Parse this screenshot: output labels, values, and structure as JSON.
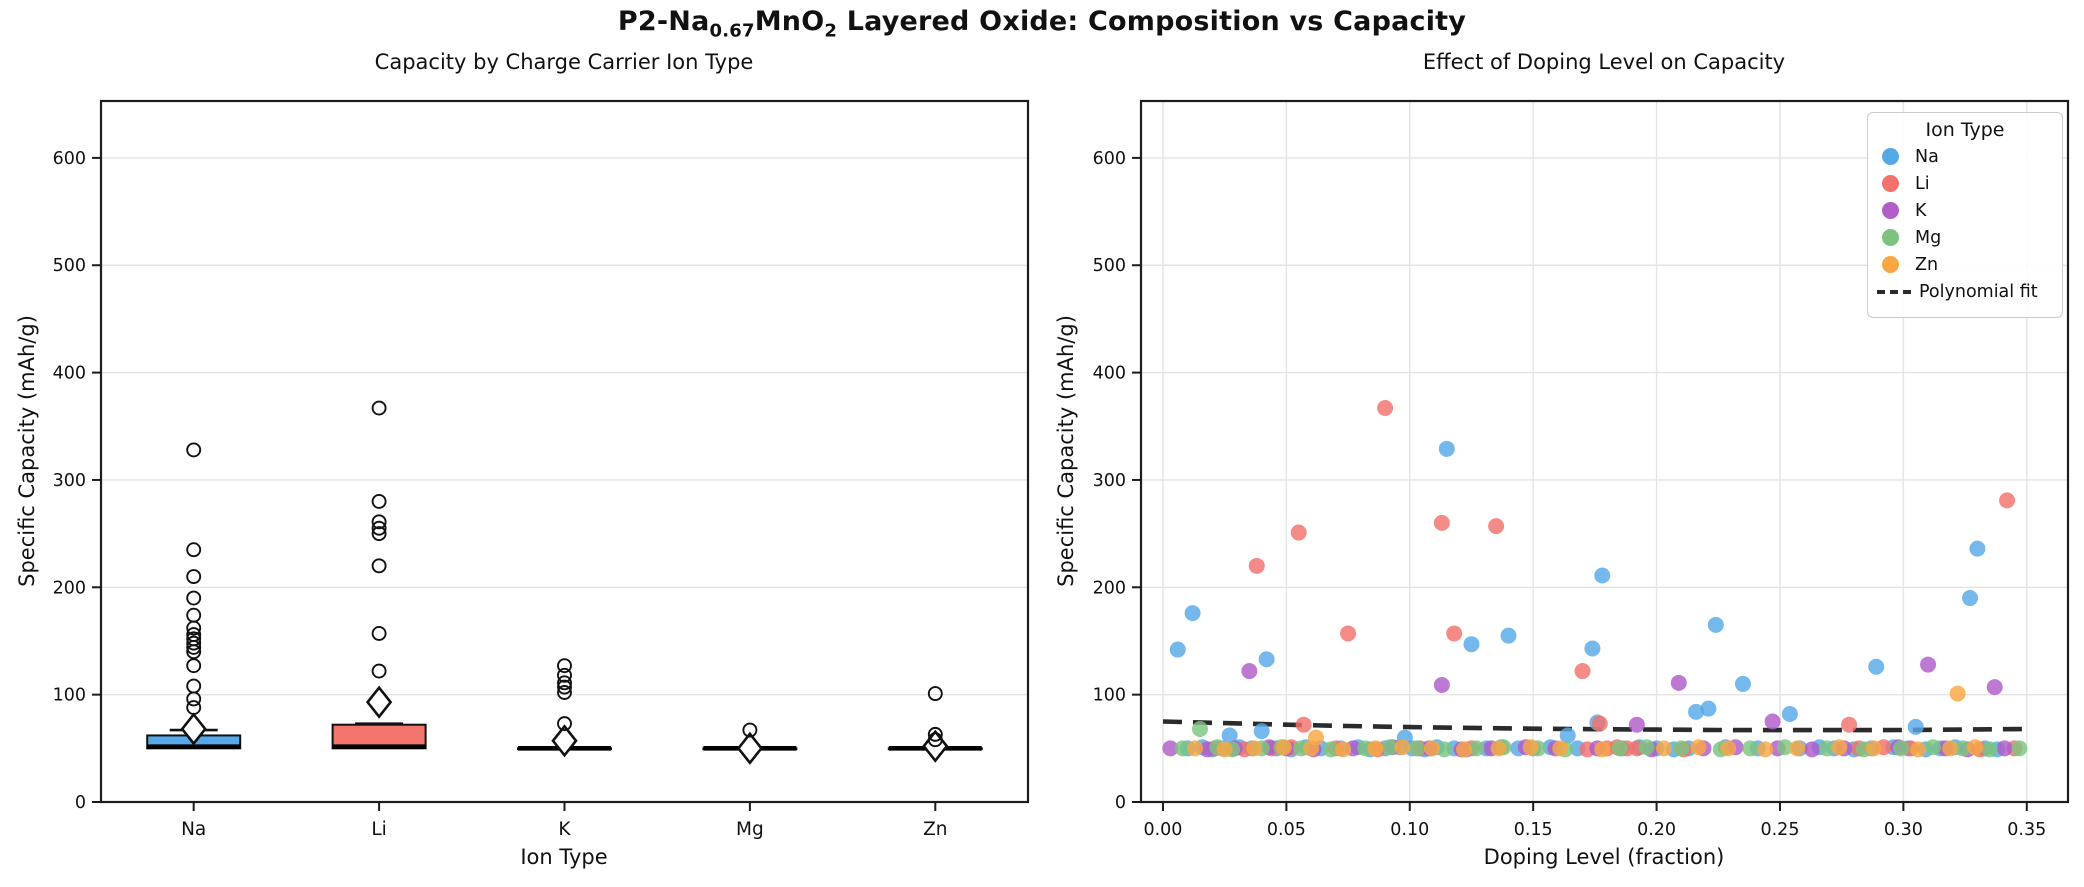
{
  "title": {
    "prefix": "P2-Na",
    "sub1": "0.67",
    "mid": "MnO",
    "sub2": "2",
    "suffix": " Layered Oxide: Composition vs Capacity"
  },
  "colors": {
    "na": "#55a8e8",
    "li": "#f3726b",
    "k": "#b05cc9",
    "mg": "#7cc47e",
    "zn": "#f9a742",
    "fit": "#2b2b2b",
    "box_na": "#55a9e8",
    "box_li": "#f4756e",
    "grid": "#e4e4e4",
    "spine": "#1c1c1c",
    "text": "#111111"
  },
  "chart_data": [
    {
      "type": "box",
      "title": "Capacity by Charge Carrier Ion Type",
      "xlabel": "Ion Type",
      "ylabel": "Specific Capacity (mAh/g)",
      "ylim": [
        0,
        653
      ],
      "yticks": [
        0,
        100,
        200,
        300,
        400,
        500,
        600
      ],
      "grid": "horizontal",
      "categories": [
        "Na",
        "Li",
        "K",
        "Mg",
        "Zn"
      ],
      "boxes": [
        {
          "label": "Na",
          "q1": 50,
          "median": 51.5,
          "q3": 62,
          "whisker_low": 50,
          "whisker_high": 67,
          "mean": 68,
          "fill": "#55a9e8",
          "outliers": [
            88,
            96,
            108,
            127,
            140,
            144,
            148,
            152,
            156,
            162,
            174,
            190,
            210,
            235,
            328
          ]
        },
        {
          "label": "Li",
          "q1": 50,
          "median": 51.5,
          "q3": 72,
          "whisker_low": 50,
          "whisker_high": 73,
          "mean": 93,
          "fill": "#f4756e",
          "outliers": [
            122,
            157,
            220,
            250,
            255,
            261,
            280,
            367
          ]
        },
        {
          "label": "K",
          "q1": 50,
          "median": 50,
          "q3": 50,
          "whisker_low": 50,
          "whisker_high": 50,
          "mean": 57,
          "fill": "#ffffff",
          "outliers": [
            73,
            102,
            107,
            111,
            118,
            127
          ]
        },
        {
          "label": "Mg",
          "q1": 50,
          "median": 50,
          "q3": 50,
          "whisker_low": 50,
          "whisker_high": 50,
          "mean": 50,
          "fill": "#ffffff",
          "outliers": [
            67
          ]
        },
        {
          "label": "Zn",
          "q1": 50,
          "median": 50,
          "q3": 50,
          "whisker_low": 50,
          "whisker_high": 50,
          "mean": 52,
          "fill": "#ffffff",
          "outliers": [
            58,
            63,
            101
          ]
        }
      ]
    },
    {
      "type": "scatter",
      "title": "Effect of Doping Level on Capacity",
      "xlabel": "Doping Level (fraction)",
      "ylabel": "Specific Capacity (mAh/g)",
      "xlim": [
        -0.0089,
        0.3667
      ],
      "ylim": [
        0,
        653
      ],
      "xticks": [
        {
          "v": 0.0,
          "label": "0.00"
        },
        {
          "v": 0.05,
          "label": "0.05"
        },
        {
          "v": 0.1,
          "label": "0.10"
        },
        {
          "v": 0.15,
          "label": "0.15"
        },
        {
          "v": 0.2,
          "label": "0.20"
        },
        {
          "v": 0.25,
          "label": "0.25"
        },
        {
          "v": 0.3,
          "label": "0.30"
        },
        {
          "v": 0.35,
          "label": "0.35"
        }
      ],
      "yticks": [
        0,
        100,
        200,
        300,
        400,
        500,
        600
      ],
      "grid": "both",
      "legend": {
        "title": "Ion Type",
        "entries": [
          {
            "label": "Na",
            "color": "#55a8e8"
          },
          {
            "label": "Li",
            "color": "#f3726b"
          },
          {
            "label": "K",
            "color": "#b05cc9"
          },
          {
            "label": "Mg",
            "color": "#7cc47e"
          },
          {
            "label": "Zn",
            "color": "#f9a742"
          }
        ],
        "fit_label": "Polynomial fit"
      },
      "series": [
        {
          "name": "Na",
          "color": "#55a8e8",
          "points": [
            [
              0.006,
              142
            ],
            [
              0.012,
              176
            ],
            [
              0.027,
              62
            ],
            [
              0.04,
              66
            ],
            [
              0.042,
              133
            ],
            [
              0.098,
              60
            ],
            [
              0.115,
              329
            ],
            [
              0.125,
              147
            ],
            [
              0.14,
              155
            ],
            [
              0.164,
              62
            ],
            [
              0.174,
              143
            ],
            [
              0.176,
              74
            ],
            [
              0.178,
              211
            ],
            [
              0.216,
              84
            ],
            [
              0.221,
              87
            ],
            [
              0.224,
              165
            ],
            [
              0.235,
              110
            ],
            [
              0.254,
              82
            ],
            [
              0.289,
              126
            ],
            [
              0.305,
              70
            ],
            [
              0.327,
              190
            ],
            [
              0.33,
              236
            ],
            [
              0.01,
              50
            ],
            [
              0.016,
              51
            ],
            [
              0.02,
              49
            ],
            [
              0.024,
              50
            ],
            [
              0.031,
              51
            ],
            [
              0.036,
              50
            ],
            [
              0.046,
              50
            ],
            [
              0.052,
              49
            ],
            [
              0.058,
              51
            ],
            [
              0.064,
              50
            ],
            [
              0.072,
              50
            ],
            [
              0.079,
              51
            ],
            [
              0.084,
              49
            ],
            [
              0.09,
              50
            ],
            [
              0.096,
              51
            ],
            [
              0.101,
              50
            ],
            [
              0.106,
              49
            ],
            [
              0.111,
              51
            ],
            [
              0.118,
              50
            ],
            [
              0.123,
              49
            ],
            [
              0.131,
              50
            ],
            [
              0.137,
              51
            ],
            [
              0.144,
              50
            ],
            [
              0.15,
              50
            ],
            [
              0.157,
              51
            ],
            [
              0.168,
              50
            ],
            [
              0.186,
              50
            ],
            [
              0.193,
              51
            ],
            [
              0.2,
              50
            ],
            [
              0.207,
              49
            ],
            [
              0.213,
              50
            ],
            [
              0.228,
              51
            ],
            [
              0.241,
              50
            ],
            [
              0.258,
              50
            ],
            [
              0.266,
              51
            ],
            [
              0.272,
              50
            ],
            [
              0.28,
              49
            ],
            [
              0.287,
              50
            ],
            [
              0.296,
              51
            ],
            [
              0.302,
              50
            ],
            [
              0.309,
              49
            ],
            [
              0.315,
              50
            ],
            [
              0.321,
              51
            ],
            [
              0.333,
              50
            ],
            [
              0.338,
              49
            ]
          ]
        },
        {
          "name": "Li",
          "color": "#f3726b",
          "points": [
            [
              0.038,
              220
            ],
            [
              0.055,
              251
            ],
            [
              0.057,
              72
            ],
            [
              0.075,
              157
            ],
            [
              0.09,
              367
            ],
            [
              0.113,
              260
            ],
            [
              0.118,
              157
            ],
            [
              0.135,
              257
            ],
            [
              0.17,
              122
            ],
            [
              0.177,
              73
            ],
            [
              0.278,
              72
            ],
            [
              0.342,
              281
            ],
            [
              0.021,
              50
            ],
            [
              0.033,
              49
            ],
            [
              0.044,
              50
            ],
            [
              0.052,
              51
            ],
            [
              0.07,
              50
            ],
            [
              0.087,
              49
            ],
            [
              0.104,
              50
            ],
            [
              0.125,
              50
            ],
            [
              0.172,
              49
            ],
            [
              0.18,
              50
            ],
            [
              0.184,
              51
            ],
            [
              0.188,
              50
            ],
            [
              0.192,
              50
            ],
            [
              0.211,
              49
            ],
            [
              0.282,
              50
            ],
            [
              0.292,
              51
            ],
            [
              0.303,
              50
            ],
            [
              0.331,
              49
            ],
            [
              0.345,
              50
            ]
          ]
        },
        {
          "name": "K",
          "color": "#b05cc9",
          "points": [
            [
              0.035,
              122
            ],
            [
              0.113,
              109
            ],
            [
              0.192,
              72
            ],
            [
              0.209,
              111
            ],
            [
              0.247,
              75
            ],
            [
              0.31,
              128
            ],
            [
              0.337,
              107
            ],
            [
              0.003,
              50
            ],
            [
              0.018,
              49
            ],
            [
              0.029,
              50
            ],
            [
              0.043,
              51
            ],
            [
              0.05,
              50
            ],
            [
              0.061,
              49
            ],
            [
              0.077,
              50
            ],
            [
              0.093,
              51
            ],
            [
              0.108,
              50
            ],
            [
              0.121,
              49
            ],
            [
              0.133,
              50
            ],
            [
              0.147,
              51
            ],
            [
              0.159,
              50
            ],
            [
              0.176,
              50
            ],
            [
              0.198,
              49
            ],
            [
              0.219,
              50
            ],
            [
              0.232,
              51
            ],
            [
              0.249,
              50
            ],
            [
              0.263,
              49
            ],
            [
              0.276,
              50
            ],
            [
              0.298,
              51
            ],
            [
              0.317,
              50
            ],
            [
              0.326,
              49
            ],
            [
              0.341,
              50
            ]
          ]
        },
        {
          "name": "Mg",
          "color": "#7cc47e",
          "points": [
            [
              0.015,
              68
            ],
            [
              0.008,
              50
            ],
            [
              0.022,
              51
            ],
            [
              0.028,
              49
            ],
            [
              0.04,
              50
            ],
            [
              0.048,
              51
            ],
            [
              0.056,
              50
            ],
            [
              0.068,
              49
            ],
            [
              0.082,
              50
            ],
            [
              0.092,
              51
            ],
            [
              0.103,
              50
            ],
            [
              0.114,
              49
            ],
            [
              0.127,
              50
            ],
            [
              0.138,
              51
            ],
            [
              0.152,
              50
            ],
            [
              0.163,
              49
            ],
            [
              0.185,
              50
            ],
            [
              0.196,
              51
            ],
            [
              0.21,
              50
            ],
            [
              0.226,
              49
            ],
            [
              0.238,
              50
            ],
            [
              0.252,
              51
            ],
            [
              0.269,
              50
            ],
            [
              0.284,
              49
            ],
            [
              0.299,
              50
            ],
            [
              0.312,
              51
            ],
            [
              0.324,
              50
            ],
            [
              0.335,
              49
            ],
            [
              0.347,
              50
            ]
          ]
        },
        {
          "name": "Zn",
          "color": "#f9a742",
          "points": [
            [
              0.062,
              60
            ],
            [
              0.322,
              101
            ],
            [
              0.013,
              50
            ],
            [
              0.025,
              49
            ],
            [
              0.037,
              50
            ],
            [
              0.049,
              51
            ],
            [
              0.06,
              50
            ],
            [
              0.073,
              49
            ],
            [
              0.086,
              50
            ],
            [
              0.097,
              51
            ],
            [
              0.109,
              50
            ],
            [
              0.122,
              49
            ],
            [
              0.136,
              50
            ],
            [
              0.149,
              51
            ],
            [
              0.161,
              50
            ],
            [
              0.178,
              49
            ],
            [
              0.203,
              50
            ],
            [
              0.217,
              51
            ],
            [
              0.229,
              50
            ],
            [
              0.244,
              49
            ],
            [
              0.257,
              50
            ],
            [
              0.274,
              51
            ],
            [
              0.288,
              50
            ],
            [
              0.306,
              49
            ],
            [
              0.319,
              50
            ],
            [
              0.329,
              51
            ]
          ]
        }
      ],
      "fit": {
        "name": "Polynomial fit",
        "color": "#2b2b2b",
        "style": "dashed",
        "points": [
          [
            0.0,
            75
          ],
          [
            0.025,
            73.5
          ],
          [
            0.05,
            72
          ],
          [
            0.075,
            70.8
          ],
          [
            0.1,
            69.8
          ],
          [
            0.125,
            69.0
          ],
          [
            0.15,
            68.3
          ],
          [
            0.175,
            67.8
          ],
          [
            0.2,
            67.4
          ],
          [
            0.225,
            67.1
          ],
          [
            0.25,
            67.0
          ],
          [
            0.275,
            67.0
          ],
          [
            0.3,
            67.1
          ],
          [
            0.325,
            67.5
          ],
          [
            0.352,
            68.0
          ]
        ]
      }
    }
  ]
}
